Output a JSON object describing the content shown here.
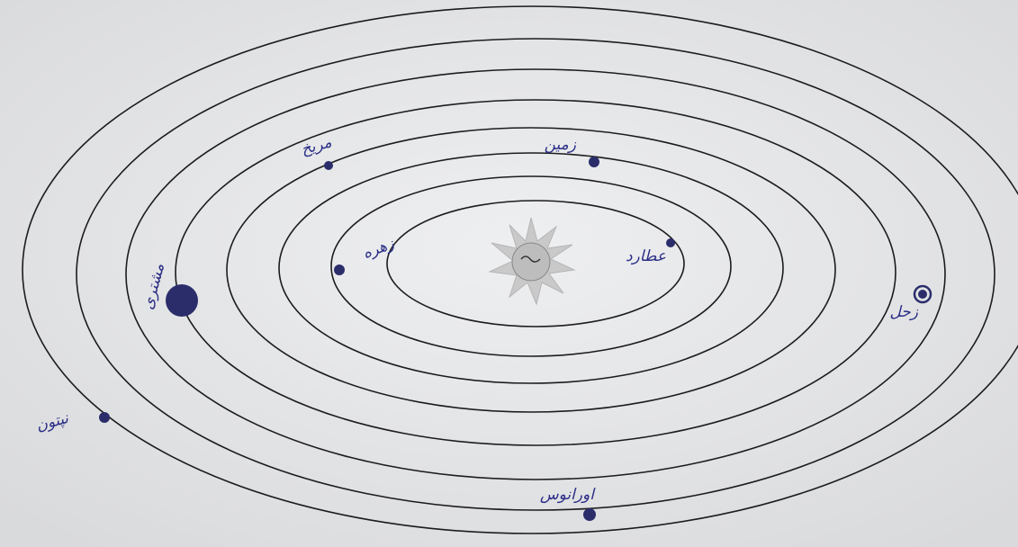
{
  "planets": [
    {
      "label": "عطارد"
    },
    {
      "label": "زهره"
    },
    {
      "label": "زمین"
    },
    {
      "label": "مریخ"
    },
    {
      "label": "مشتری"
    },
    {
      "label": "زحل"
    },
    {
      "label": "اورانوس"
    },
    {
      "label": "نپتون"
    }
  ]
}
